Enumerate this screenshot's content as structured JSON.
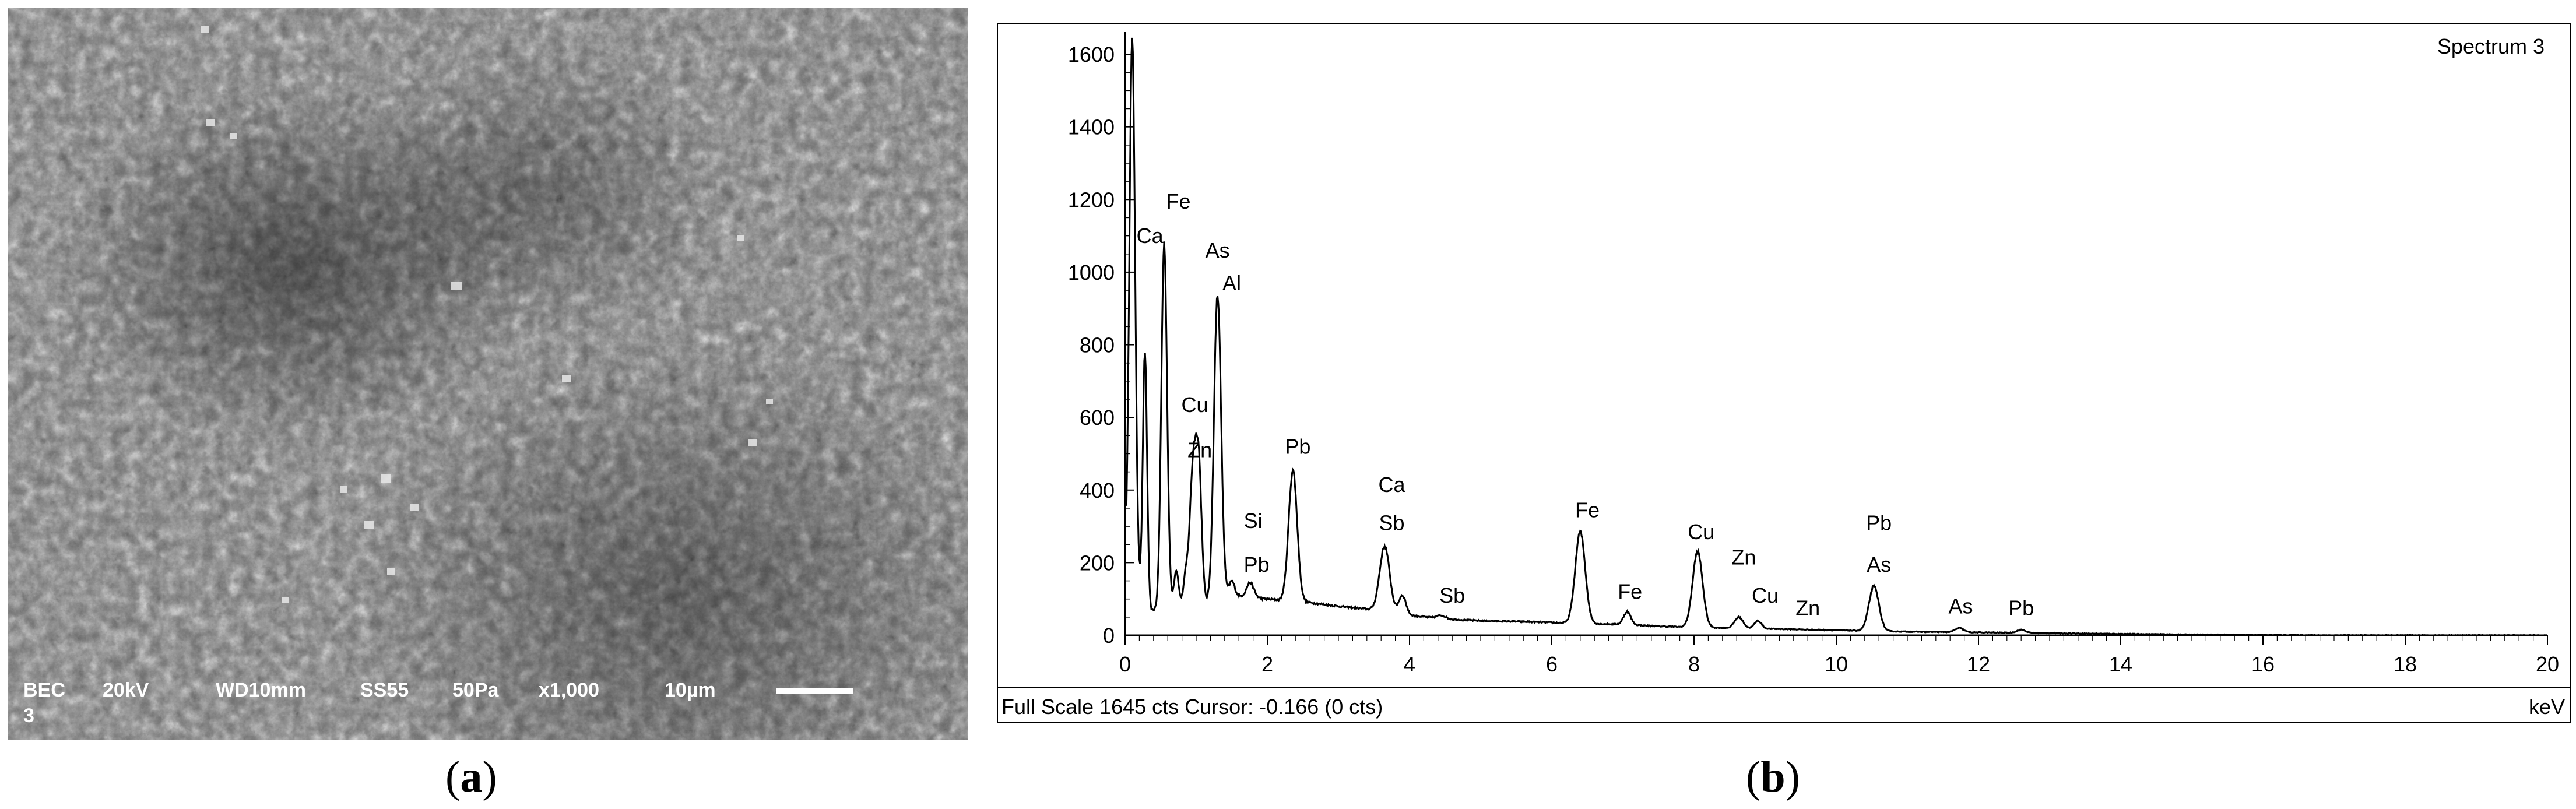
{
  "sem_image": {
    "info": {
      "mode": "BEC",
      "mode_line2": "3",
      "voltage": "20kV",
      "wd": "WD10mm",
      "spot": "SS55",
      "pressure": "50Pa",
      "magnification": "x1,000",
      "scale": "10µm"
    }
  },
  "captions": {
    "a": "a",
    "b": "b"
  },
  "chart_data": {
    "type": "line",
    "title": "Spectrum 3",
    "xlabel": "keV",
    "ylabel": "",
    "xlim": [
      0,
      20
    ],
    "ylim": [
      0,
      1645
    ],
    "x_ticks": [
      0,
      2,
      4,
      6,
      8,
      10,
      12,
      14,
      16,
      18,
      20
    ],
    "y_ticks": [
      0,
      200,
      400,
      600,
      800,
      1000,
      1200,
      1400,
      1600
    ],
    "footer": "Full Scale 1645 cts Cursor: -0.166  (0 cts)",
    "background_cts": [
      [
        0.15,
        160
      ],
      [
        0.3,
        60
      ],
      [
        0.7,
        95
      ],
      [
        1.0,
        80
      ],
      [
        1.5,
        110
      ],
      [
        2.0,
        100
      ],
      [
        2.6,
        90
      ],
      [
        3.0,
        80
      ],
      [
        3.5,
        70
      ],
      [
        4.0,
        55
      ],
      [
        4.5,
        45
      ],
      [
        5.0,
        40
      ],
      [
        5.5,
        38
      ],
      [
        6.0,
        35
      ],
      [
        6.5,
        32
      ],
      [
        7.0,
        30
      ],
      [
        7.5,
        25
      ],
      [
        8.0,
        22
      ],
      [
        8.5,
        20
      ],
      [
        9.0,
        18
      ],
      [
        9.5,
        16
      ],
      [
        10.0,
        14
      ],
      [
        10.5,
        12
      ],
      [
        11.0,
        10
      ],
      [
        12.0,
        8
      ],
      [
        13.0,
        6
      ],
      [
        14.0,
        4
      ],
      [
        15.0,
        2
      ],
      [
        16.0,
        1
      ],
      [
        17.0,
        0
      ],
      [
        20.0,
        0
      ]
    ],
    "peaks": [
      {
        "kev": 0.1,
        "cts": 1645,
        "sigma": 0.04
      },
      {
        "kev": 0.28,
        "cts": 780,
        "sigma": 0.03
      },
      {
        "kev": 0.55,
        "cts": 1080,
        "sigma": 0.04
      },
      {
        "kev": 0.72,
        "cts": 180,
        "sigma": 0.03
      },
      {
        "kev": 0.85,
        "cts": 150,
        "sigma": 0.03
      },
      {
        "kev": 0.96,
        "cts": 470,
        "sigma": 0.05
      },
      {
        "kev": 1.04,
        "cts": 400,
        "sigma": 0.04
      },
      {
        "kev": 1.3,
        "cts": 940,
        "sigma": 0.05
      },
      {
        "kev": 1.5,
        "cts": 150,
        "sigma": 0.04
      },
      {
        "kev": 1.76,
        "cts": 145,
        "sigma": 0.05
      },
      {
        "kev": 2.36,
        "cts": 455,
        "sigma": 0.06
      },
      {
        "kev": 3.65,
        "cts": 245,
        "sigma": 0.07
      },
      {
        "kev": 3.9,
        "cts": 110,
        "sigma": 0.05
      },
      {
        "kev": 4.45,
        "cts": 55,
        "sigma": 0.06
      },
      {
        "kev": 6.4,
        "cts": 285,
        "sigma": 0.07
      },
      {
        "kev": 7.06,
        "cts": 65,
        "sigma": 0.05
      },
      {
        "kev": 8.05,
        "cts": 230,
        "sigma": 0.07
      },
      {
        "kev": 8.63,
        "cts": 50,
        "sigma": 0.06
      },
      {
        "kev": 8.9,
        "cts": 40,
        "sigma": 0.05
      },
      {
        "kev": 10.53,
        "cts": 135,
        "sigma": 0.07
      },
      {
        "kev": 11.73,
        "cts": 20,
        "sigma": 0.06
      },
      {
        "kev": 12.6,
        "cts": 15,
        "sigma": 0.06
      }
    ],
    "annotations": [
      {
        "text": "Ca",
        "x": 0.35,
        "y": 1080
      },
      {
        "text": "Fe",
        "x": 0.75,
        "y": 1175
      },
      {
        "text": "As",
        "x": 1.3,
        "y": 1040
      },
      {
        "text": "Al",
        "x": 1.5,
        "y": 950
      },
      {
        "text": "Cu",
        "x": 0.98,
        "y": 615
      },
      {
        "text": "Zn",
        "x": 1.05,
        "y": 490
      },
      {
        "text": "Si",
        "x": 1.8,
        "y": 295
      },
      {
        "text": "Pb",
        "x": 1.85,
        "y": 175
      },
      {
        "text": "Pb",
        "x": 2.43,
        "y": 500
      },
      {
        "text": "Ca",
        "x": 3.75,
        "y": 395
      },
      {
        "text": "Sb",
        "x": 3.75,
        "y": 290
      },
      {
        "text": "Sb",
        "x": 4.6,
        "y": 90
      },
      {
        "text": "Fe",
        "x": 6.5,
        "y": 325
      },
      {
        "text": "Fe",
        "x": 7.1,
        "y": 100
      },
      {
        "text": "Cu",
        "x": 8.1,
        "y": 265
      },
      {
        "text": "Zn",
        "x": 8.7,
        "y": 195
      },
      {
        "text": "Cu",
        "x": 9.0,
        "y": 90
      },
      {
        "text": "Zn",
        "x": 9.6,
        "y": 55
      },
      {
        "text": "Pb",
        "x": 10.6,
        "y": 290
      },
      {
        "text": "As",
        "x": 10.6,
        "y": 175
      },
      {
        "text": "As",
        "x": 11.75,
        "y": 60
      },
      {
        "text": "Pb",
        "x": 12.6,
        "y": 55
      }
    ]
  }
}
